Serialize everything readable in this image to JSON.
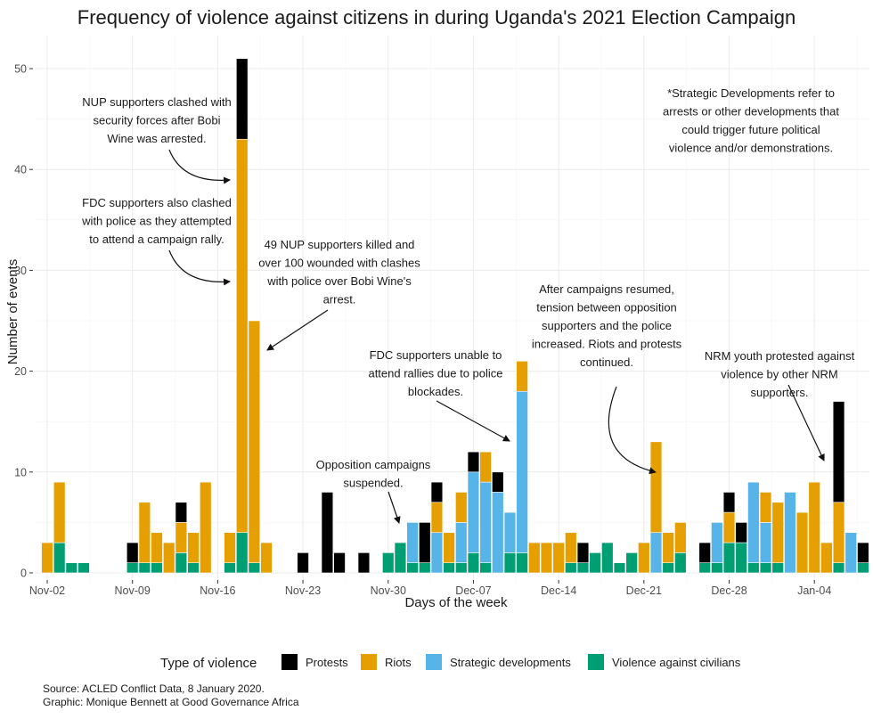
{
  "chart_data": {
    "type": "bar",
    "stacked": true,
    "title": "Frequency of violence against citizens in during Uganda's 2021 Election Campaign",
    "xlabel": "Days of the week",
    "ylabel": "Number of events",
    "ylim": [
      0,
      52
    ],
    "yticks": [
      0,
      10,
      20,
      30,
      40,
      50
    ],
    "xticks": [
      "Nov-02",
      "Nov-09",
      "Nov-16",
      "Nov-23",
      "Nov-30",
      "Dec-07",
      "Dec-14",
      "Dec-21",
      "Dec-28",
      "Jan-04"
    ],
    "grid": true,
    "legend": {
      "title": "Type of violence",
      "placement": "bottom",
      "entries": [
        {
          "key": "protests",
          "label": "Protests",
          "color": "#000000"
        },
        {
          "key": "riots",
          "label": "Riots",
          "color": "#E69F00"
        },
        {
          "key": "strategic",
          "label": "Strategic developments",
          "color": "#56B4E9"
        },
        {
          "key": "vac",
          "label": "Violence against civilians",
          "color": "#009E73"
        }
      ]
    },
    "stack_order": [
      "vac",
      "strategic",
      "riots",
      "protests"
    ],
    "data": [
      {
        "date": "Nov-02",
        "vac": 0,
        "strategic": 0,
        "riots": 3,
        "protests": 0
      },
      {
        "date": "Nov-03",
        "vac": 3,
        "strategic": 0,
        "riots": 6,
        "protests": 0
      },
      {
        "date": "Nov-04",
        "vac": 1,
        "strategic": 0,
        "riots": 0,
        "protests": 0
      },
      {
        "date": "Nov-05",
        "vac": 1,
        "strategic": 0,
        "riots": 0,
        "protests": 0
      },
      {
        "date": "Nov-09",
        "vac": 1,
        "strategic": 0,
        "riots": 0,
        "protests": 2
      },
      {
        "date": "Nov-10",
        "vac": 1,
        "strategic": 0,
        "riots": 6,
        "protests": 0
      },
      {
        "date": "Nov-11",
        "vac": 1,
        "strategic": 0,
        "riots": 3,
        "protests": 0
      },
      {
        "date": "Nov-12",
        "vac": 0,
        "strategic": 0,
        "riots": 3,
        "protests": 0
      },
      {
        "date": "Nov-13",
        "vac": 2,
        "strategic": 0,
        "riots": 3,
        "protests": 2
      },
      {
        "date": "Nov-14",
        "vac": 1,
        "strategic": 0,
        "riots": 3,
        "protests": 0
      },
      {
        "date": "Nov-15",
        "vac": 0,
        "strategic": 0,
        "riots": 9,
        "protests": 0
      },
      {
        "date": "Nov-17",
        "vac": 1,
        "strategic": 0,
        "riots": 3,
        "protests": 0
      },
      {
        "date": "Nov-18",
        "vac": 4,
        "strategic": 0,
        "riots": 39,
        "protests": 8
      },
      {
        "date": "Nov-19",
        "vac": 1,
        "strategic": 0,
        "riots": 24,
        "protests": 0
      },
      {
        "date": "Nov-20",
        "vac": 0,
        "strategic": 0,
        "riots": 3,
        "protests": 0
      },
      {
        "date": "Nov-23",
        "vac": 0,
        "strategic": 0,
        "riots": 0,
        "protests": 2
      },
      {
        "date": "Nov-25",
        "vac": 0,
        "strategic": 0,
        "riots": 0,
        "protests": 8
      },
      {
        "date": "Nov-26",
        "vac": 0,
        "strategic": 0,
        "riots": 0,
        "protests": 2
      },
      {
        "date": "Nov-28",
        "vac": 0,
        "strategic": 0,
        "riots": 0,
        "protests": 2
      },
      {
        "date": "Nov-30",
        "vac": 2,
        "strategic": 0,
        "riots": 0,
        "protests": 0
      },
      {
        "date": "Dec-01",
        "vac": 3,
        "strategic": 0,
        "riots": 0,
        "protests": 0
      },
      {
        "date": "Dec-02",
        "vac": 1,
        "strategic": 4,
        "riots": 0,
        "protests": 0
      },
      {
        "date": "Dec-03",
        "vac": 1,
        "strategic": 0,
        "riots": 0,
        "protests": 4
      },
      {
        "date": "Dec-04",
        "vac": 0,
        "strategic": 4,
        "riots": 3,
        "protests": 2
      },
      {
        "date": "Dec-05",
        "vac": 1,
        "strategic": 0,
        "riots": 3,
        "protests": 0
      },
      {
        "date": "Dec-06",
        "vac": 1,
        "strategic": 4,
        "riots": 3,
        "protests": 0
      },
      {
        "date": "Dec-07",
        "vac": 2,
        "strategic": 8,
        "riots": 0,
        "protests": 2
      },
      {
        "date": "Dec-08",
        "vac": 1,
        "strategic": 8,
        "riots": 3,
        "protests": 0
      },
      {
        "date": "Dec-09",
        "vac": 0,
        "strategic": 8,
        "riots": 0,
        "protests": 2
      },
      {
        "date": "Dec-10",
        "vac": 2,
        "strategic": 4,
        "riots": 0,
        "protests": 0
      },
      {
        "date": "Dec-11",
        "vac": 2,
        "strategic": 16,
        "riots": 3,
        "protests": 0
      },
      {
        "date": "Dec-12",
        "vac": 0,
        "strategic": 0,
        "riots": 3,
        "protests": 0
      },
      {
        "date": "Dec-13",
        "vac": 0,
        "strategic": 0,
        "riots": 3,
        "protests": 0
      },
      {
        "date": "Dec-14",
        "vac": 0,
        "strategic": 0,
        "riots": 3,
        "protests": 0
      },
      {
        "date": "Dec-15",
        "vac": 1,
        "strategic": 0,
        "riots": 3,
        "protests": 0
      },
      {
        "date": "Dec-16",
        "vac": 1,
        "strategic": 0,
        "riots": 0,
        "protests": 2
      },
      {
        "date": "Dec-17",
        "vac": 2,
        "strategic": 0,
        "riots": 0,
        "protests": 0
      },
      {
        "date": "Dec-18",
        "vac": 3,
        "strategic": 0,
        "riots": 0,
        "protests": 0
      },
      {
        "date": "Dec-19",
        "vac": 1,
        "strategic": 0,
        "riots": 0,
        "protests": 0
      },
      {
        "date": "Dec-20",
        "vac": 2,
        "strategic": 0,
        "riots": 0,
        "protests": 0
      },
      {
        "date": "Dec-21",
        "vac": 0,
        "strategic": 0,
        "riots": 3,
        "protests": 0
      },
      {
        "date": "Dec-22",
        "vac": 0,
        "strategic": 4,
        "riots": 9,
        "protests": 0
      },
      {
        "date": "Dec-23",
        "vac": 1,
        "strategic": 0,
        "riots": 3,
        "protests": 0
      },
      {
        "date": "Dec-24",
        "vac": 2,
        "strategic": 0,
        "riots": 3,
        "protests": 0
      },
      {
        "date": "Dec-26",
        "vac": 1,
        "strategic": 0,
        "riots": 0,
        "protests": 2
      },
      {
        "date": "Dec-27",
        "vac": 1,
        "strategic": 4,
        "riots": 0,
        "protests": 0
      },
      {
        "date": "Dec-28",
        "vac": 3,
        "strategic": 0,
        "riots": 3,
        "protests": 2
      },
      {
        "date": "Dec-29",
        "vac": 3,
        "strategic": 0,
        "riots": 0,
        "protests": 2
      },
      {
        "date": "Dec-30",
        "vac": 1,
        "strategic": 8,
        "riots": 0,
        "protests": 0
      },
      {
        "date": "Dec-31",
        "vac": 1,
        "strategic": 4,
        "riots": 3,
        "protests": 0
      },
      {
        "date": "Jan-01",
        "vac": 1,
        "strategic": 0,
        "riots": 6,
        "protests": 0
      },
      {
        "date": "Jan-02",
        "vac": 0,
        "strategic": 8,
        "riots": 0,
        "protests": 0
      },
      {
        "date": "Jan-03",
        "vac": 0,
        "strategic": 0,
        "riots": 6,
        "protests": 0
      },
      {
        "date": "Jan-04",
        "vac": 0,
        "strategic": 0,
        "riots": 9,
        "protests": 0
      },
      {
        "date": "Jan-05",
        "vac": 0,
        "strategic": 0,
        "riots": 3,
        "protests": 0
      },
      {
        "date": "Jan-06",
        "vac": 1,
        "strategic": 0,
        "riots": 6,
        "protests": 10
      },
      {
        "date": "Jan-07",
        "vac": 0,
        "strategic": 4,
        "riots": 0,
        "protests": 0
      },
      {
        "date": "Jan-08",
        "vac": 1,
        "strategic": 0,
        "riots": 0,
        "protests": 2
      }
    ],
    "annotations": [
      {
        "lines": [
          "NUP supporters clashed with",
          "security forces after Bobi",
          "Wine was arrested."
        ]
      },
      {
        "lines": [
          "FDC supporters also clashed",
          "with police as they attempted",
          "to attend a campaign rally."
        ]
      },
      {
        "lines": [
          "49 NUP supporters killed and",
          "over 100 wounded with clashes",
          "with police over Bobi Wine's",
          "arrest."
        ]
      },
      {
        "lines": [
          "*Strategic Developments refer to",
          "arrests or other developments that",
          "could trigger future political",
          "violence and/or demonstrations."
        ]
      },
      {
        "lines": [
          "After campaigns resumed,",
          "tension between opposition",
          "supporters and the police",
          "increased. Riots and protests",
          "continued."
        ]
      },
      {
        "lines": [
          "FDC supporters unable to",
          "attend rallies due to police",
          "blockades."
        ]
      },
      {
        "lines": [
          "Opposition campaigns",
          "suspended."
        ]
      },
      {
        "lines": [
          "NRM youth protested against",
          "violence by other NRM",
          "supporters."
        ]
      }
    ]
  },
  "caption": {
    "source": "Source: ACLED Conflict Data, 8 January 2020.",
    "graphic": "Graphic: Monique Bennett at Good Governance Africa"
  }
}
